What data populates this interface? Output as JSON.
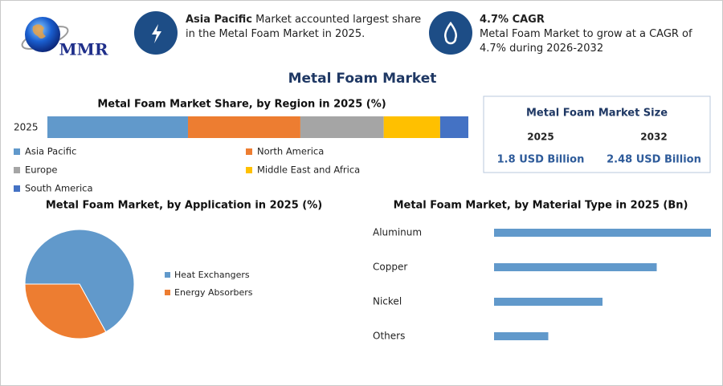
{
  "logo": "MMR",
  "highlights": [
    {
      "bold": "Asia Pacific",
      "text": "Market accounted largest share in the Metal Foam Market in 2025."
    },
    {
      "bold": "4.7% CAGR",
      "text": "Metal Foam Market to grow at a CAGR of 4.7% during 2026-2032"
    }
  ],
  "title": "Metal Foam Market",
  "market_size": {
    "title": "Metal Foam Market Size",
    "columns": [
      {
        "year": "2025",
        "value": "1.8 USD Billion"
      },
      {
        "year": "2032",
        "value": "2.48 USD Billion"
      }
    ]
  },
  "chart_data": [
    {
      "type": "stacked_bar",
      "title": "Metal Foam Market Share, by Region in 2025 (%)",
      "categories": [
        "2025"
      ],
      "series": [
        {
          "name": "Asia Pacific",
          "color": "#6199cb",
          "values": [
            33.4
          ]
        },
        {
          "name": "North America",
          "color": "#ed7d31",
          "values": [
            26.7
          ]
        },
        {
          "name": "Europe",
          "color": "#a5a5a5",
          "values": [
            19.8
          ]
        },
        {
          "name": "Middle East and Africa",
          "color": "#ffc000",
          "values": [
            13.4
          ]
        },
        {
          "name": "South America",
          "color": "#4472c4",
          "values": [
            6.7
          ]
        }
      ]
    },
    {
      "type": "pie",
      "title": "Metal Foam Market, by Application in 2025 (%)",
      "categories": [
        "Heat Exchangers",
        "Energy Absorbers"
      ],
      "values": [
        67,
        33
      ],
      "colors": [
        "#6199cb",
        "#ed7d31"
      ]
    },
    {
      "type": "hbar",
      "title": "Metal Foam Market, by Material Type in 2025 (Bn)",
      "categories": [
        "Aluminum",
        "Copper",
        "Nickel",
        "Others"
      ],
      "values": [
        0.72,
        0.54,
        0.36,
        0.18
      ],
      "color": "#6199cb"
    }
  ]
}
